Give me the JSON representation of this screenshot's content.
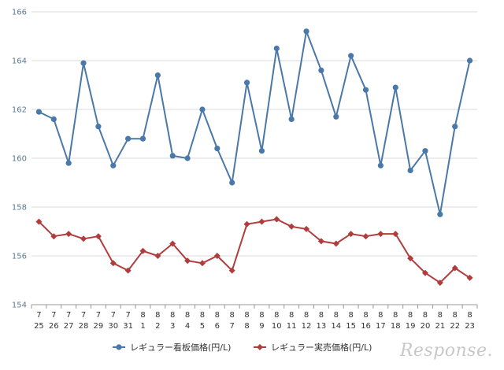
{
  "chart_data": {
    "type": "line",
    "title": "",
    "xlabel": "",
    "ylabel": "",
    "ylim": [
      154,
      166
    ],
    "yticks": [
      "154",
      "156",
      "158",
      "160",
      "162",
      "164",
      "166"
    ],
    "grid": true,
    "legend_position": "bottom",
    "categories": [
      {
        "month": "7",
        "day": "25"
      },
      {
        "month": "7",
        "day": "26"
      },
      {
        "month": "7",
        "day": "27"
      },
      {
        "month": "7",
        "day": "28"
      },
      {
        "month": "7",
        "day": "29"
      },
      {
        "month": "7",
        "day": "30"
      },
      {
        "month": "7",
        "day": "31"
      },
      {
        "month": "8",
        "day": "1"
      },
      {
        "month": "8",
        "day": "2"
      },
      {
        "month": "8",
        "day": "3"
      },
      {
        "month": "8",
        "day": "4"
      },
      {
        "month": "8",
        "day": "5"
      },
      {
        "month": "8",
        "day": "6"
      },
      {
        "month": "8",
        "day": "7"
      },
      {
        "month": "8",
        "day": "8"
      },
      {
        "month": "8",
        "day": "9"
      },
      {
        "month": "8",
        "day": "10"
      },
      {
        "month": "8",
        "day": "11"
      },
      {
        "month": "8",
        "day": "12"
      },
      {
        "month": "8",
        "day": "13"
      },
      {
        "month": "8",
        "day": "14"
      },
      {
        "month": "8",
        "day": "15"
      },
      {
        "month": "8",
        "day": "16"
      },
      {
        "month": "8",
        "day": "17"
      },
      {
        "month": "8",
        "day": "18"
      },
      {
        "month": "8",
        "day": "19"
      },
      {
        "month": "8",
        "day": "20"
      },
      {
        "month": "8",
        "day": "21"
      },
      {
        "month": "8",
        "day": "22"
      },
      {
        "month": "8",
        "day": "23"
      }
    ],
    "series": [
      {
        "name": "レギュラー看板価格(円/L)",
        "color": "#4a78a8",
        "marker": "circle",
        "values": [
          161.9,
          161.6,
          159.8,
          163.9,
          161.3,
          159.7,
          160.8,
          160.8,
          163.4,
          160.1,
          160.0,
          162.0,
          160.4,
          159.0,
          163.1,
          160.3,
          164.5,
          161.6,
          165.2,
          163.6,
          161.7,
          164.2,
          162.8,
          159.7,
          162.9,
          159.5,
          160.3,
          157.7,
          161.3,
          164.0
        ]
      },
      {
        "name": "レギュラー実売価格(円/L)",
        "color": "#b13c3c",
        "marker": "diamond",
        "values": [
          157.4,
          156.8,
          156.9,
          156.7,
          156.8,
          155.7,
          155.4,
          156.2,
          156.0,
          156.5,
          155.8,
          155.7,
          156.0,
          155.4,
          157.3,
          157.4,
          157.5,
          157.2,
          157.1,
          156.6,
          156.5,
          156.9,
          156.8,
          156.9,
          156.9,
          155.9,
          155.3,
          154.9,
          155.5,
          155.1
        ]
      }
    ]
  },
  "watermark": "Response."
}
